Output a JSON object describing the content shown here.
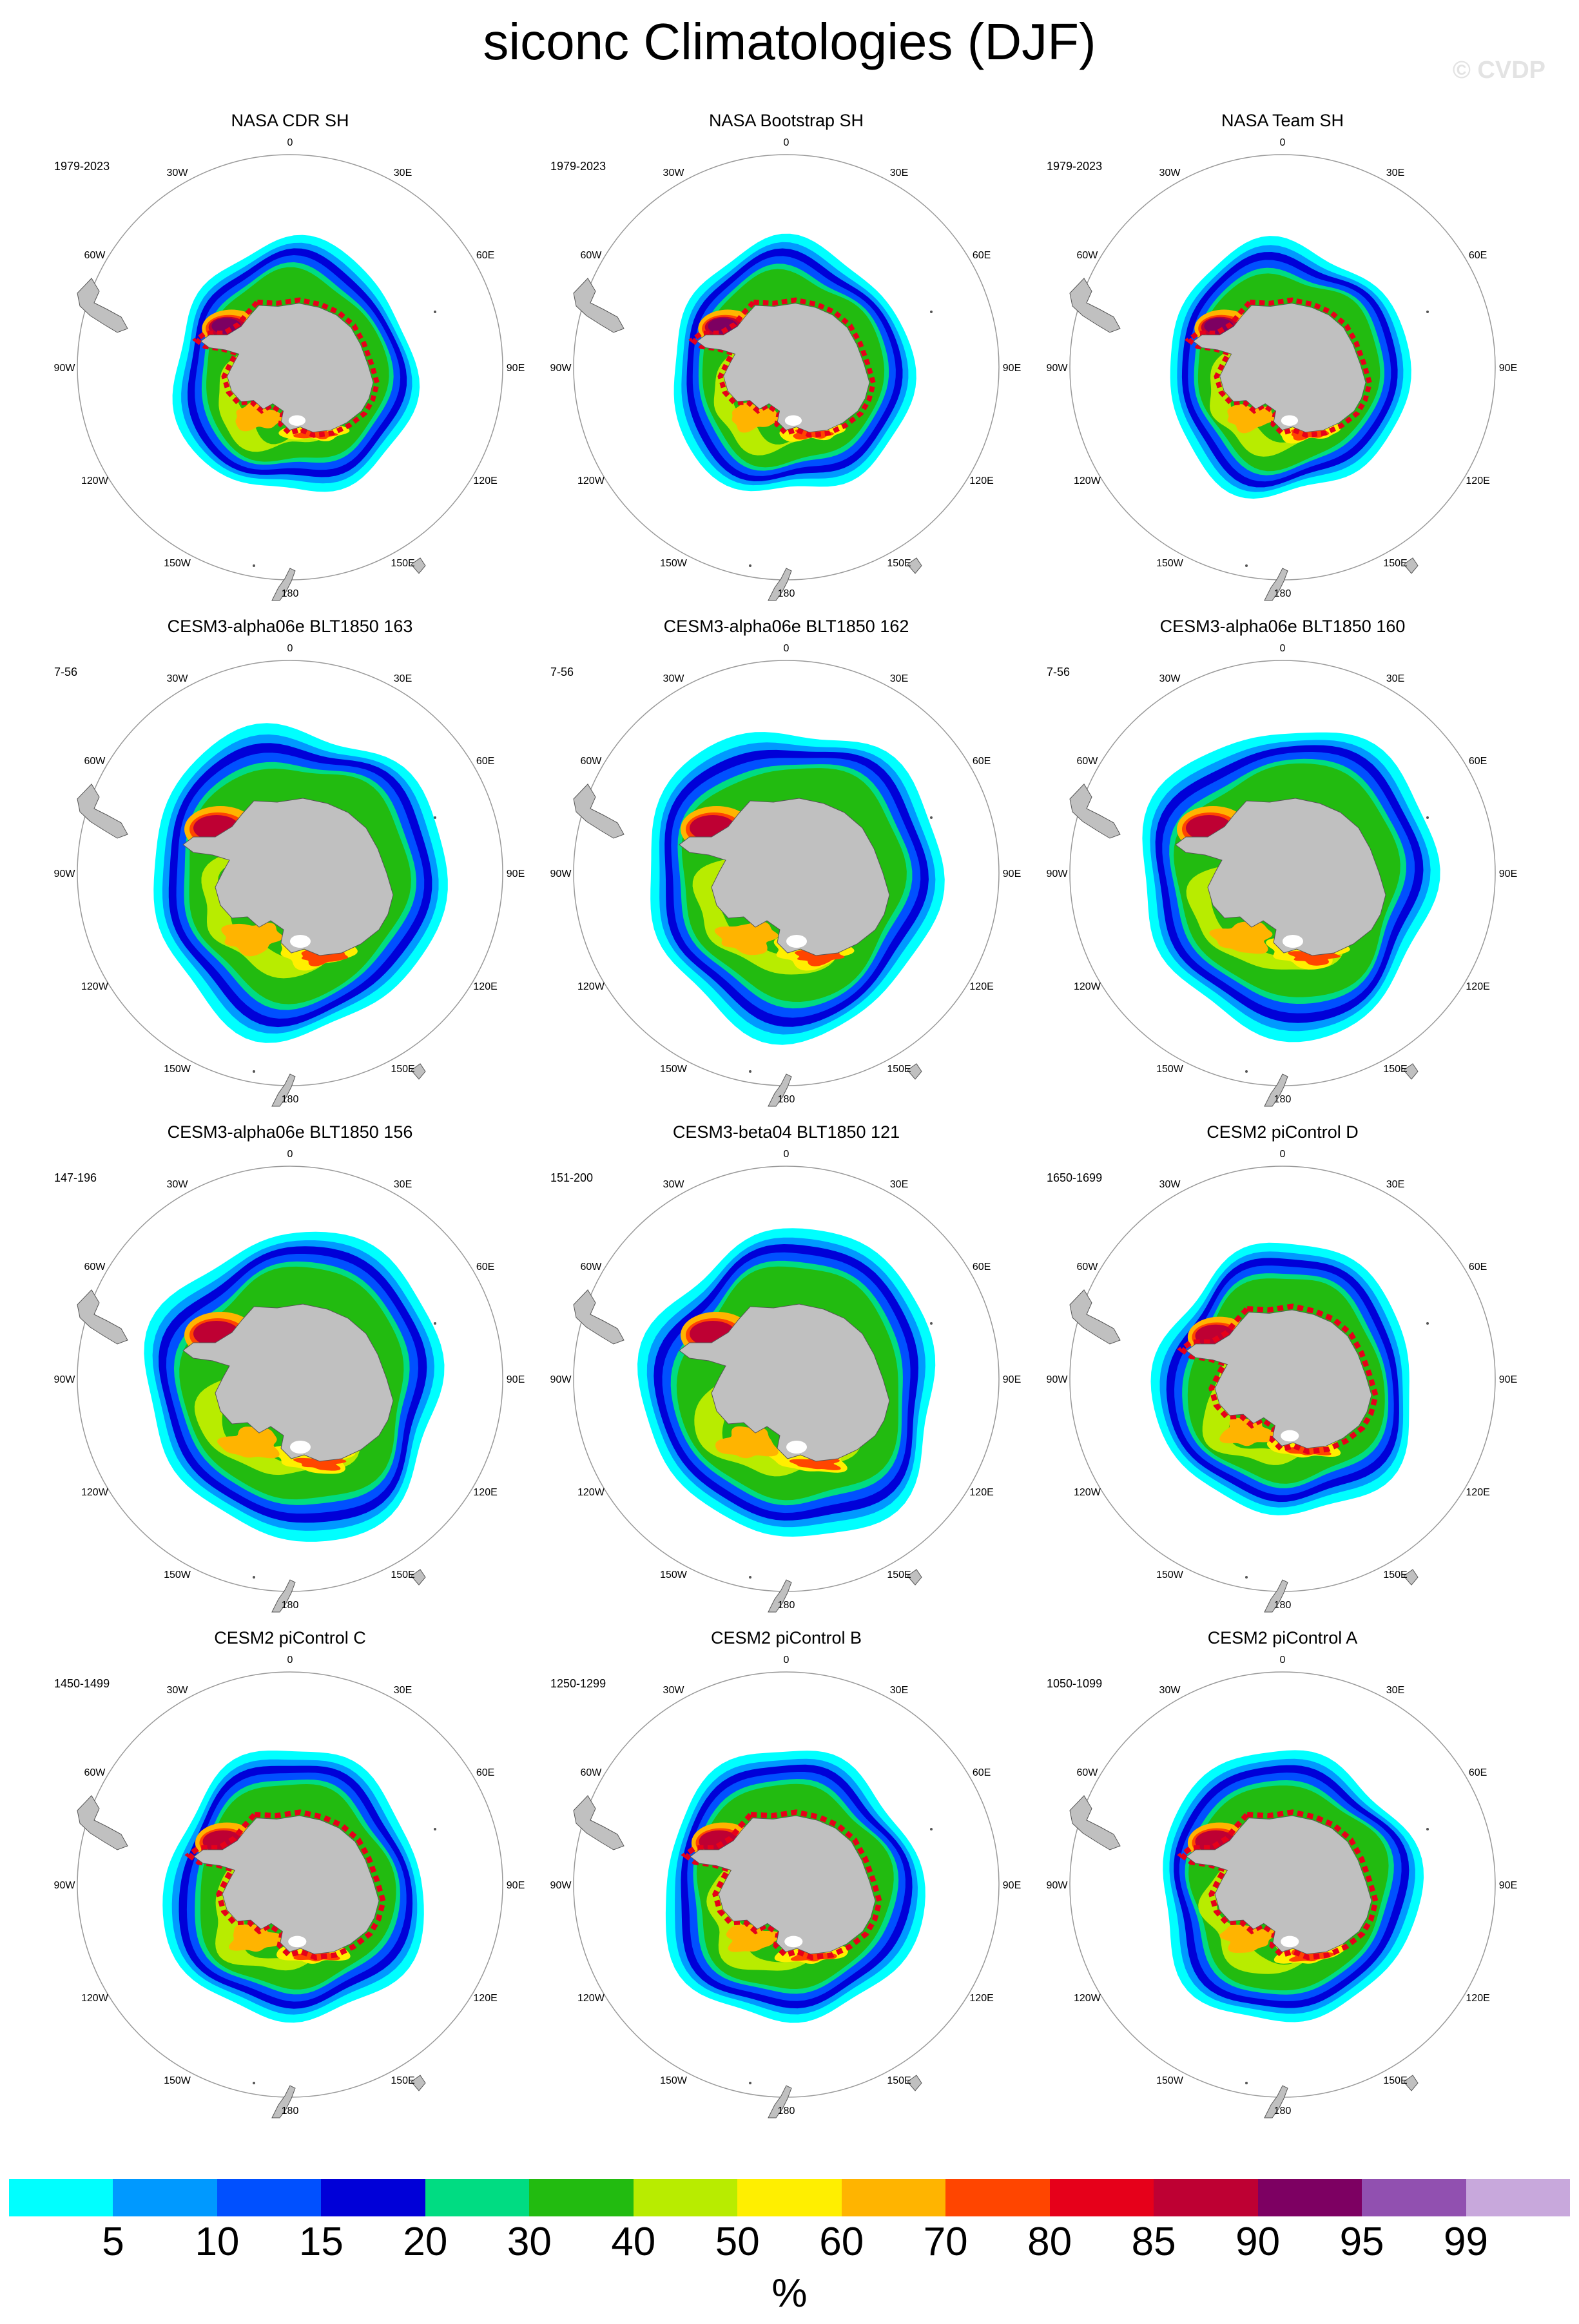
{
  "title": "siconc Climatologies (DJF)",
  "watermark": "© CVDP",
  "longitude_labels": [
    "0",
    "30E",
    "60E",
    "90E",
    "120E",
    "150E",
    "180",
    "150W",
    "120W",
    "90W",
    "60W",
    "30W"
  ],
  "panels": [
    {
      "title": "NASA CDR SH",
      "period": "1979-2023",
      "extent": "small",
      "style": "obs"
    },
    {
      "title": "NASA Bootstrap SH",
      "period": "1979-2023",
      "extent": "small",
      "style": "obs"
    },
    {
      "title": "NASA Team SH",
      "period": "1979-2023",
      "extent": "small",
      "style": "obs"
    },
    {
      "title": "CESM3-alpha06e BLT1850 163",
      "period": "7-56",
      "extent": "large",
      "style": "model"
    },
    {
      "title": "CESM3-alpha06e BLT1850 162",
      "period": "7-56",
      "extent": "large",
      "style": "model"
    },
    {
      "title": "CESM3-alpha06e BLT1850 160",
      "period": "7-56",
      "extent": "large",
      "style": "model"
    },
    {
      "title": "CESM3-alpha06e BLT1850 156",
      "period": "147-196",
      "extent": "large",
      "style": "model"
    },
    {
      "title": "CESM3-beta04 BLT1850 121",
      "period": "151-200",
      "extent": "large",
      "style": "model"
    },
    {
      "title": "CESM2 piControl D",
      "period": "1650-1699",
      "extent": "medium",
      "style": "cesm2"
    },
    {
      "title": "CESM2 piControl C",
      "period": "1450-1499",
      "extent": "medium",
      "style": "cesm2"
    },
    {
      "title": "CESM2 piControl B",
      "period": "1250-1299",
      "extent": "medium",
      "style": "cesm2"
    },
    {
      "title": "CESM2 piControl A",
      "period": "1050-1099",
      "extent": "medium",
      "style": "cesm2"
    }
  ],
  "colorbar": {
    "labels": [
      "5",
      "10",
      "15",
      "20",
      "30",
      "40",
      "50",
      "60",
      "70",
      "80",
      "85",
      "90",
      "95",
      "99"
    ],
    "unit": "%",
    "colors": [
      "#00ffff",
      "#0099ff",
      "#0050ff",
      "#0000d8",
      "#00dc82",
      "#22bb10",
      "#b8ec00",
      "#ffef00",
      "#ffb400",
      "#ff4500",
      "#e6001a",
      "#be0033",
      "#7d0062",
      "#9150b0",
      "#c8a8dc"
    ]
  },
  "map_colors": {
    "land": "#c0c0c0",
    "land_edge": "#555555",
    "circle": "#999999",
    "ocean": "#ffffff"
  }
}
